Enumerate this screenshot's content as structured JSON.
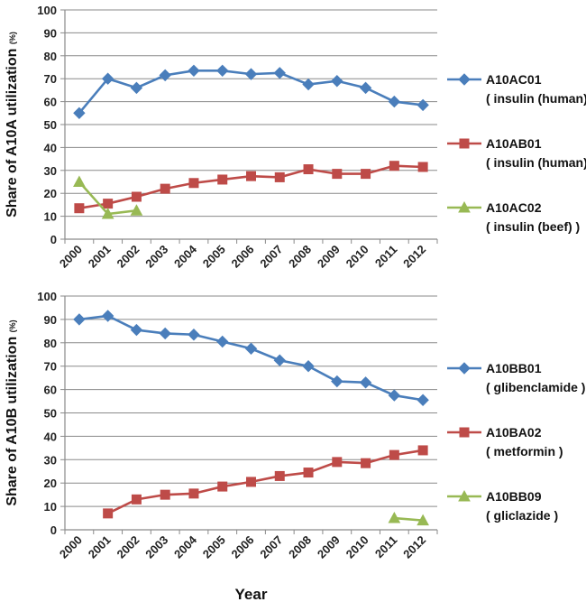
{
  "chart_data": [
    {
      "type": "line",
      "title": "",
      "ylabel": "Share of A10A utilization",
      "ylabel_unit": "(%)",
      "xlabel": "",
      "ylim": [
        0,
        100
      ],
      "yticks": [
        "0",
        "10",
        "20",
        "30",
        "40",
        "50",
        "60",
        "70",
        "80",
        "90",
        "100"
      ],
      "categories": [
        "2000",
        "2001",
        "2002",
        "2003",
        "2004",
        "2005",
        "2006",
        "2007",
        "2008",
        "2009",
        "2010",
        "2011",
        "2012"
      ],
      "grid": true,
      "legend_position": "right",
      "series": [
        {
          "name": "A10AC01",
          "label": "( insulin (human) )",
          "color": "#4a7ebb",
          "marker": "diamond",
          "values": [
            55,
            70,
            66,
            71.5,
            73.5,
            73.5,
            72,
            72.5,
            67.5,
            69,
            66,
            60,
            58.5
          ]
        },
        {
          "name": "A10AB01",
          "label": "( insulin (human) )",
          "color": "#be4b48",
          "marker": "square",
          "values": [
            13.5,
            15.5,
            18.5,
            22,
            24.5,
            26,
            27.5,
            27,
            30.5,
            28.5,
            28.5,
            32,
            31.5
          ]
        },
        {
          "name": "A10AC02",
          "label": "( insulin (beef) )",
          "color": "#98b954",
          "marker": "triangle",
          "values": [
            25,
            11,
            12.5,
            null,
            null,
            null,
            null,
            null,
            null,
            null,
            null,
            null,
            null
          ]
        }
      ]
    },
    {
      "type": "line",
      "title": "",
      "ylabel": "Share of A10B utilization",
      "ylabel_unit": "(%)",
      "xlabel": "Year",
      "ylim": [
        0,
        100
      ],
      "yticks": [
        "0",
        "10",
        "20",
        "30",
        "40",
        "50",
        "60",
        "70",
        "80",
        "90",
        "100"
      ],
      "categories": [
        "2000",
        "2001",
        "2002",
        "2003",
        "2004",
        "2005",
        "2006",
        "2007",
        "2008",
        "2009",
        "2010",
        "2011",
        "2012"
      ],
      "grid": true,
      "legend_position": "right",
      "series": [
        {
          "name": "A10BB01",
          "label": "( glibenclamide )",
          "color": "#4a7ebb",
          "marker": "diamond",
          "values": [
            90,
            91.5,
            85.5,
            84,
            83.5,
            80.5,
            77.5,
            72.5,
            70,
            63.5,
            63,
            57.5,
            55.5
          ]
        },
        {
          "name": "A10BA02",
          "label": "( metformin )",
          "color": "#be4b48",
          "marker": "square",
          "values": [
            null,
            7,
            13,
            15,
            15.5,
            18.5,
            20.5,
            23,
            24.5,
            29,
            28.5,
            32,
            34
          ]
        },
        {
          "name": "A10BB09",
          "label": "( gliclazide )",
          "color": "#98b954",
          "marker": "triangle",
          "values": [
            null,
            null,
            null,
            null,
            null,
            null,
            null,
            null,
            null,
            null,
            null,
            5,
            4
          ]
        }
      ]
    }
  ]
}
